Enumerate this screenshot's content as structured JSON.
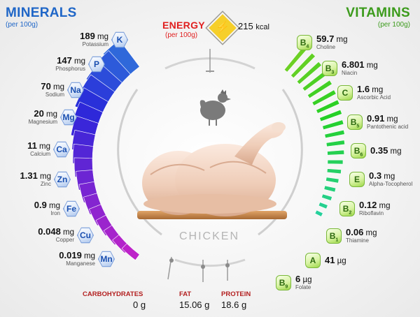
{
  "minerals": {
    "title": "MINERALS",
    "subtitle": "(per 100g)",
    "items": [
      {
        "symbol": "K",
        "amount": "189",
        "unit": "mg",
        "name": "Potassium"
      },
      {
        "symbol": "P",
        "amount": "147",
        "unit": "mg",
        "name": "Phosphorus"
      },
      {
        "symbol": "Na",
        "amount": "70",
        "unit": "mg",
        "name": "Sodium"
      },
      {
        "symbol": "Mg",
        "amount": "20",
        "unit": "mg",
        "name": "Magnesium"
      },
      {
        "symbol": "Ca",
        "amount": "11",
        "unit": "mg",
        "name": "Calcium"
      },
      {
        "symbol": "Zn",
        "amount": "1.31",
        "unit": "mg",
        "name": "Zinc"
      },
      {
        "symbol": "Fe",
        "amount": "0.9",
        "unit": "mg",
        "name": "Iron"
      },
      {
        "symbol": "Cu",
        "amount": "0.048",
        "unit": "mg",
        "name": "Copper"
      },
      {
        "symbol": "Mn",
        "amount": "0.019",
        "unit": "mg",
        "name": "Manganese"
      }
    ]
  },
  "vitamins": {
    "title": "VITAMINS",
    "subtitle": "(per 100g)",
    "items": [
      {
        "letter": "B",
        "index": "4",
        "amount": "59.7",
        "unit": "mg",
        "name": "Choline"
      },
      {
        "letter": "B",
        "index": "3",
        "amount": "6.801",
        "unit": "mg",
        "name": "Niacin"
      },
      {
        "letter": "C",
        "index": "",
        "amount": "1.6",
        "unit": "mg",
        "name": "Ascorbic Acid"
      },
      {
        "letter": "B",
        "index": "5",
        "amount": "0.91",
        "unit": "mg",
        "name": "Pantothenic acid"
      },
      {
        "letter": "B",
        "index": "6",
        "amount": "0.35",
        "unit": "mg",
        "name": ""
      },
      {
        "letter": "E",
        "index": "",
        "amount": "0.3",
        "unit": "mg",
        "name": "Alpha-Tocopherol"
      },
      {
        "letter": "B",
        "index": "2",
        "amount": "0.12",
        "unit": "mg",
        "name": "Riboflavin"
      },
      {
        "letter": "B",
        "index": "1",
        "amount": "0.06",
        "unit": "mg",
        "name": "Thiamine"
      },
      {
        "letter": "A",
        "index": "",
        "amount": "41",
        "unit": "µg",
        "name": ""
      },
      {
        "letter": "B",
        "index": "9",
        "amount": "6",
        "unit": "µg",
        "name": "Folate"
      }
    ]
  },
  "energy": {
    "title": "ENERGY",
    "subtitle": "(per 100g)",
    "value": "215",
    "unit": "kcal",
    "icon": "lightning-icon"
  },
  "product": {
    "name": "CHICKEN",
    "icon": "hen-icon"
  },
  "macros": [
    {
      "label": "CARBOHYDRATES",
      "value": "0",
      "unit": "g"
    },
    {
      "label": "FAT",
      "value": "15.06",
      "unit": "g"
    },
    {
      "label": "PROTEIN",
      "value": "18.6",
      "unit": "g"
    }
  ],
  "colors": {
    "minerals": "#1f66c7",
    "vitamins": "#3c9b1c",
    "energy": "#e01f1f",
    "macros": "#b32020"
  }
}
